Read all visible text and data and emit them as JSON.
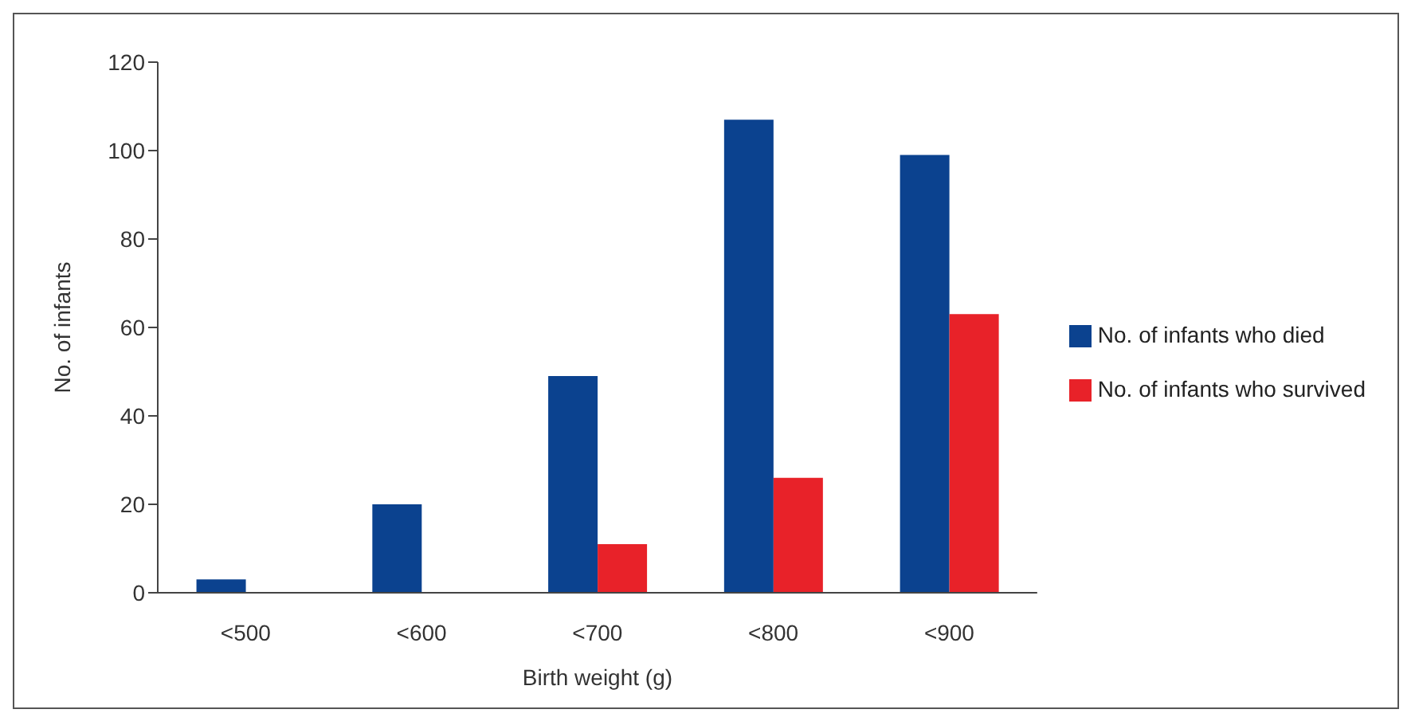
{
  "chart_data": {
    "type": "bar",
    "xlabel": "Birth weight (g)",
    "ylabel": "No. of infants",
    "categories": [
      "<500",
      "<600",
      "<700",
      "<800",
      "<900"
    ],
    "series": [
      {
        "name": "No. of infants who died",
        "color": "#0b428f",
        "values": [
          3,
          20,
          49,
          107,
          99
        ]
      },
      {
        "name": "No. of infants who survived",
        "color": "#e82229",
        "values": [
          0,
          0,
          11,
          26,
          63
        ]
      }
    ],
    "ylim": [
      0,
      120
    ],
    "yticks": [
      0,
      20,
      40,
      60,
      80,
      100,
      120
    ],
    "grid": false,
    "legend": "right"
  }
}
